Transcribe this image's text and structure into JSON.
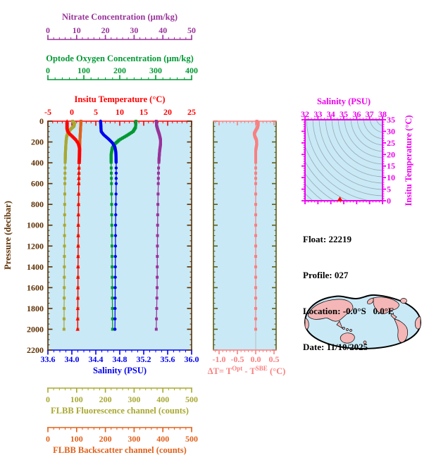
{
  "figure": {
    "background": "#ffffff",
    "panel_background": "#c9e9f6"
  },
  "info": {
    "rows": [
      {
        "label": "Float:",
        "value": "22219"
      },
      {
        "label": "Profile:",
        "value": "027"
      },
      {
        "label": "Location:",
        "value": "-0.0°S   0.0°E"
      },
      {
        "label": "Date:",
        "value": "11/10/2025"
      }
    ]
  },
  "chart_data": {
    "main_profile_plot": {
      "type": "line",
      "description": "Ocean float vertical profiles versus pressure",
      "pressure_axis": {
        "title": "Pressure (decibar)",
        "min": 0,
        "max": 2200,
        "tick_values": [
          0,
          200,
          400,
          600,
          800,
          1000,
          1200,
          1400,
          1600,
          1800,
          2000,
          2200
        ],
        "tick_labels": [
          "0",
          "200",
          "400",
          "600",
          "800",
          "1000",
          "1200",
          "1400",
          "1600",
          "1800",
          "2000",
          "2200"
        ],
        "minor_step": 50,
        "color": "#5e2f00"
      },
      "x_axes": [
        {
          "id": "nitrate",
          "title": "Nitrate Concentration (μm/kg)",
          "color": "#993399",
          "min": 0,
          "max": 50,
          "tick_values": [
            0,
            10,
            20,
            30,
            40,
            50
          ],
          "tick_labels": [
            "0",
            "10",
            "20",
            "30",
            "40",
            "50"
          ],
          "minor_step": 2
        },
        {
          "id": "oxygen",
          "title": "Optode Oxygen Concentration (μm/kg)",
          "color": "#009933",
          "min": 0,
          "max": 400,
          "tick_values": [
            0,
            100,
            200,
            300,
            400
          ],
          "tick_labels": [
            "0",
            "100",
            "200",
            "300",
            "400"
          ],
          "minor_step": 20
        },
        {
          "id": "temperature",
          "title": "Insitu Temperature (°C)",
          "color": "#ff0000",
          "min": -5,
          "max": 25,
          "tick_values": [
            -5,
            0,
            5,
            10,
            15,
            20,
            25
          ],
          "tick_labels": [
            "-5",
            "0",
            "5",
            "10",
            "15",
            "20",
            "25"
          ],
          "minor_step": 1
        },
        {
          "id": "salinity",
          "title": "Salinity (PSU)",
          "color": "#0000ee",
          "min": 33.6,
          "max": 36.0,
          "tick_values": [
            33.6,
            34.0,
            34.4,
            34.8,
            35.2,
            35.6,
            36.0
          ],
          "tick_labels": [
            "33.6",
            "34.0",
            "34.4",
            "34.8",
            "35.2",
            "35.6",
            "36.0"
          ],
          "minor_step": 0.1
        },
        {
          "id": "fluorescence",
          "title": "FLBB Fluorescence channel (counts)",
          "color": "#a8a832",
          "min": 0,
          "max": 500,
          "tick_values": [
            0,
            100,
            200,
            300,
            400,
            500
          ],
          "tick_labels": [
            "0",
            "100",
            "200",
            "300",
            "400",
            "500"
          ],
          "minor_step": 20
        },
        {
          "id": "backscatter",
          "title": "FLBB Backscatter channel (counts)",
          "color": "#e0601a",
          "min": 0,
          "max": 500,
          "tick_values": [
            0,
            100,
            200,
            300,
            400,
            500
          ],
          "tick_labels": [
            "0",
            "100",
            "200",
            "300",
            "400",
            "500"
          ],
          "minor_step": 20
        }
      ],
      "series": [
        {
          "id": "fluorescence",
          "name": "FLBB Fluorescence",
          "axis": "fluorescence",
          "color": "#a8a832",
          "marker": "square",
          "points": [
            [
              0,
              86
            ],
            [
              25,
              93
            ],
            [
              50,
              90
            ],
            [
              80,
              78
            ],
            [
              110,
              70
            ],
            [
              150,
              65
            ],
            [
              200,
              63
            ],
            [
              300,
              61
            ],
            [
              400,
              60
            ],
            [
              600,
              59
            ],
            [
              1000,
              58
            ],
            [
              1500,
              57
            ],
            [
              2000,
              56
            ]
          ]
        },
        {
          "id": "backscatter",
          "name": "FLBB Backscatter",
          "axis": "backscatter",
          "color": "#e0601a",
          "marker": "square",
          "points": [
            [
              0,
              115
            ],
            [
              50,
              114
            ],
            [
              100,
              113
            ],
            [
              150,
              112
            ],
            [
              200,
              111
            ],
            [
              300,
              110
            ],
            [
              400,
              109
            ],
            [
              600,
              108
            ],
            [
              1000,
              106
            ],
            [
              1500,
              105
            ],
            [
              2000,
              104
            ]
          ]
        },
        {
          "id": "temperature",
          "name": "Insitu Temperature",
          "axis": "temperature",
          "color": "#ff0000",
          "marker": "triangle",
          "points": [
            [
              0,
              -1.0
            ],
            [
              60,
              -1.0
            ],
            [
              90,
              -0.85
            ],
            [
              120,
              -0.4
            ],
            [
              150,
              0.3
            ],
            [
              180,
              0.95
            ],
            [
              210,
              1.4
            ],
            [
              250,
              1.62
            ],
            [
              330,
              1.58
            ],
            [
              420,
              1.5
            ],
            [
              500,
              1.45
            ],
            [
              700,
              1.4
            ],
            [
              1000,
              1.34
            ],
            [
              1300,
              1.3
            ],
            [
              1600,
              1.26
            ],
            [
              2000,
              1.2
            ]
          ]
        },
        {
          "id": "oxygen",
          "name": "Optode Oxygen",
          "axis": "oxygen",
          "color": "#009933",
          "marker": "square",
          "points": [
            [
              0,
              245
            ],
            [
              60,
              244
            ],
            [
              100,
              237
            ],
            [
              140,
              219
            ],
            [
              180,
              199
            ],
            [
              220,
              186
            ],
            [
              260,
              179
            ],
            [
              320,
              176
            ],
            [
              400,
              176
            ],
            [
              600,
              177
            ],
            [
              1000,
              178
            ],
            [
              1500,
              179
            ],
            [
              2000,
              180
            ]
          ]
        },
        {
          "id": "salinity",
          "name": "Salinity",
          "axis": "salinity",
          "color": "#0000ee",
          "marker": "circle",
          "points": [
            [
              0,
              34.48
            ],
            [
              100,
              34.49
            ],
            [
              130,
              34.53
            ],
            [
              170,
              34.61
            ],
            [
              210,
              34.68
            ],
            [
              250,
              34.72
            ],
            [
              300,
              34.735
            ],
            [
              400,
              34.74
            ],
            [
              600,
              34.74
            ],
            [
              1000,
              34.73
            ],
            [
              1500,
              34.725
            ],
            [
              2000,
              34.72
            ]
          ]
        },
        {
          "id": "nitrate",
          "name": "Nitrate",
          "axis": "nitrate",
          "color": "#993399",
          "marker": "square",
          "points": [
            [
              0,
              37.7
            ],
            [
              40,
              37.8
            ],
            [
              80,
              38.2
            ],
            [
              130,
              38.8
            ],
            [
              180,
              39.2
            ],
            [
              220,
              39.2
            ],
            [
              280,
              38.9
            ],
            [
              350,
              38.7
            ],
            [
              450,
              38.5
            ],
            [
              600,
              38.4
            ],
            [
              900,
              38.2
            ],
            [
              1200,
              38.1
            ],
            [
              1600,
              38.0
            ],
            [
              2000,
              37.7
            ]
          ]
        }
      ]
    },
    "delta_t_plot": {
      "type": "line",
      "x_axis": {
        "title_parts": {
          "p1": "ΔT= T",
          "sup1": "Opt",
          "p2": " - T",
          "sup2": "SBE",
          "p3": " (°C)"
        },
        "color": "#f88080",
        "tick_values": [
          -1.0,
          -0.5,
          0.0,
          0.5
        ],
        "tick_labels": [
          "-1.0",
          "-0.5",
          "0.0",
          "0.5"
        ],
        "minor_step": 0.1
      },
      "frame_color": "#5e5e14",
      "zero_line_color": "#bbbbbb",
      "series": {
        "name": "Optode minus SBE temperature",
        "color": "#f88080",
        "marker": "square",
        "points": [
          [
            0,
            0.03
          ],
          [
            30,
            0.07
          ],
          [
            60,
            0.05
          ],
          [
            90,
            0.0
          ],
          [
            120,
            -0.04
          ],
          [
            150,
            -0.02
          ],
          [
            180,
            0.02
          ],
          [
            220,
            0.03
          ],
          [
            280,
            0.0
          ],
          [
            400,
            0.0
          ],
          [
            600,
            0.0
          ],
          [
            1000,
            0.0
          ],
          [
            1500,
            0.0
          ],
          [
            2000,
            0.0
          ]
        ]
      }
    },
    "ts_diagram": {
      "type": "scatter",
      "s_axis": {
        "title": "Salinity (PSU)",
        "color": "#ee00ee",
        "min": 32,
        "max": 38,
        "tick_values": [
          32,
          33,
          34,
          35,
          36,
          37,
          38
        ],
        "tick_labels": [
          "32",
          "33",
          "34",
          "35",
          "36",
          "37",
          "38"
        ],
        "minor_step": 0.25
      },
      "t_axis": {
        "title": "Insitu Temperature (°C)",
        "color": "#ee00ee",
        "min": 0,
        "max": 35,
        "tick_values": [
          0,
          5,
          10,
          15,
          20,
          25,
          30,
          35
        ],
        "tick_labels": [
          "0",
          "5",
          "10",
          "15",
          "20",
          "25",
          "30",
          "35"
        ],
        "minor_step": 1
      },
      "contour_color": "#8f9fa6",
      "point": {
        "salinity": 34.7,
        "temperature": 0.6,
        "color": "#ff0000"
      }
    }
  },
  "map": {
    "ocean_color": "#c9e9f6",
    "land_color": "#f4b6b6",
    "outline_color": "#000000"
  }
}
